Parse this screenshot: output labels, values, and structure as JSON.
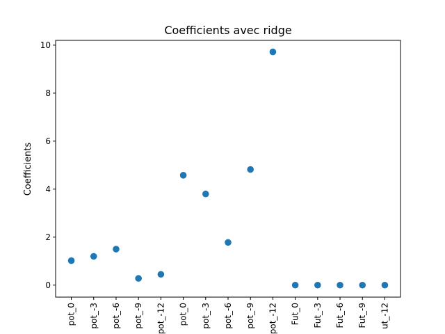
{
  "chart_data": {
    "type": "scatter",
    "title": "Coefficients avec ridge",
    "xlabel": "",
    "ylabel": "Coefficients",
    "categories": [
      "pot_0",
      "pot_-3",
      "pot_-6",
      "pot_-9",
      "pot_-12",
      "pot_0",
      "pot_-3",
      "pot_-6",
      "pot_-9",
      "pot_-12",
      "Fut_0",
      "Fut_-3",
      "Fut_-6",
      "Fut_-9",
      "ut_-12"
    ],
    "values": [
      1.02,
      1.2,
      1.5,
      0.28,
      0.45,
      4.58,
      3.8,
      1.78,
      4.82,
      9.72,
      0.0,
      0.0,
      0.0,
      0.0,
      0.0
    ],
    "ylim": [
      -0.5,
      10.2
    ],
    "yticks": [
      0,
      2,
      4,
      6,
      8,
      10
    ],
    "color": "#1f77b4",
    "grid": false
  }
}
